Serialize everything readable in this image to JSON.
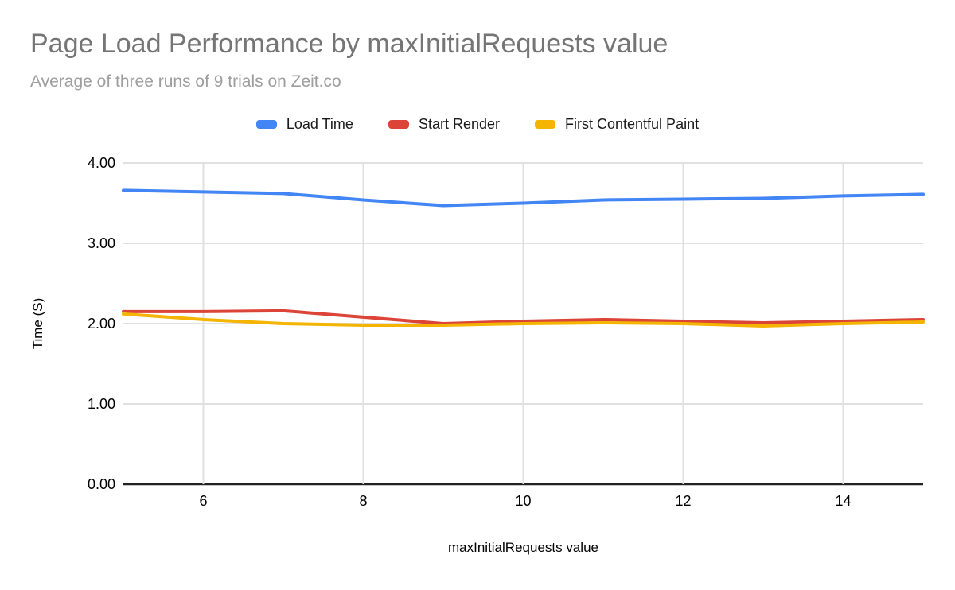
{
  "chart_data": {
    "type": "line",
    "title": "Page Load Performance by maxInitialRequests value",
    "subtitle": "Average of three runs of 9 trials on Zeit.co",
    "xlabel": "maxInitialRequests value",
    "ylabel": "Time (S)",
    "x": [
      5,
      6,
      7,
      8,
      9,
      10,
      11,
      12,
      13,
      14,
      15
    ],
    "xlim": [
      5,
      15
    ],
    "ylim": [
      0,
      4
    ],
    "xticks": [
      6,
      8,
      10,
      12,
      14
    ],
    "ytick_values": [
      0,
      1,
      2,
      3,
      4
    ],
    "ytick_labels": [
      "0.00",
      "1.00",
      "2.00",
      "3.00",
      "4.00"
    ],
    "grid": true,
    "legend_position": "top",
    "series": [
      {
        "name": "Load Time",
        "color": "#4285f4",
        "values": [
          3.66,
          3.64,
          3.62,
          3.54,
          3.47,
          3.5,
          3.54,
          3.55,
          3.56,
          3.59,
          3.61
        ]
      },
      {
        "name": "Start Render",
        "color": "#db4437",
        "values": [
          2.15,
          2.15,
          2.16,
          2.08,
          2.0,
          2.03,
          2.05,
          2.03,
          2.01,
          2.03,
          2.05
        ]
      },
      {
        "name": "First Contentful Paint",
        "color": "#f4b400",
        "values": [
          2.12,
          2.05,
          2.0,
          1.98,
          1.98,
          2.0,
          2.01,
          2.0,
          1.97,
          2.0,
          2.02
        ]
      }
    ],
    "colors": {
      "title": "#757575",
      "subtitle": "#9e9e9e",
      "grid": "#e0e0e0",
      "axis_line": "#212121",
      "tick_label": "#000000",
      "legend_text": "#1a1a1a",
      "background": "#ffffff"
    }
  }
}
